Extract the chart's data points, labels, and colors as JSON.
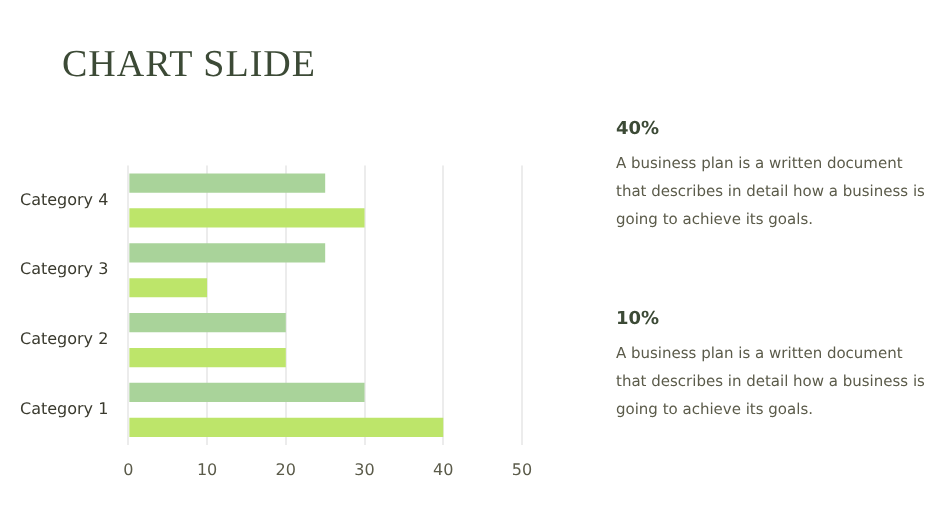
{
  "chart_data": {
    "type": "bar",
    "orientation": "horizontal",
    "title": "CHART SLIDE",
    "categories": [
      "Category 4",
      "Category 3",
      "Category 2",
      "Category 1"
    ],
    "series": [
      {
        "color": "#a9d39a",
        "values": [
          25,
          25,
          20,
          30
        ]
      },
      {
        "color": "#bde56a",
        "values": [
          30,
          10,
          20,
          40
        ]
      }
    ],
    "xlim": [
      0,
      50
    ],
    "xticks": [
      0,
      10,
      20,
      30,
      40,
      50
    ],
    "grid": "x",
    "legend": false,
    "annotations": [
      "40%",
      "A business plan is a written document that describes in detail how a business is going to achieve its goals.",
      "10%",
      "A business plan is a written document that describes in detail how a business is going to achieve its goals."
    ]
  }
}
